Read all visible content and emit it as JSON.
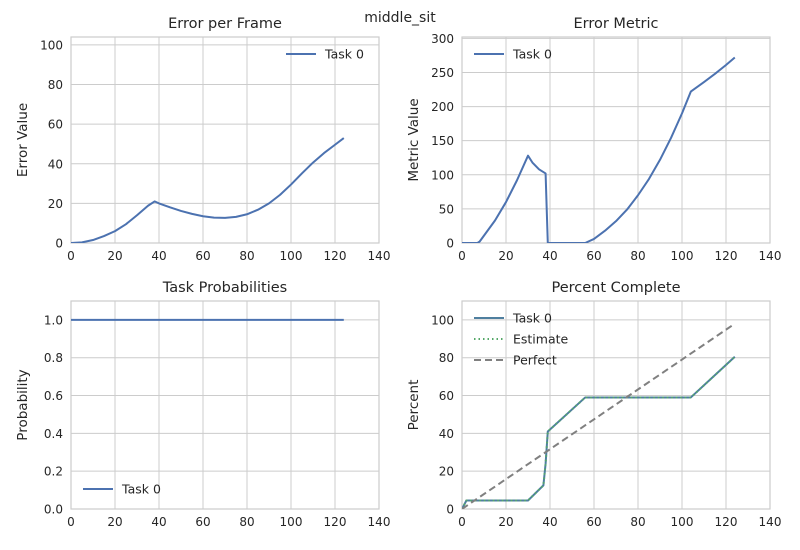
{
  "figure": {
    "suptitle": "middle_sit",
    "colors": {
      "axes_background": "#ffffff",
      "grid": "#cccccc",
      "spine": "#cccccc",
      "text": "#262626",
      "task0_primary": "#4c72b0",
      "task0_percent": "#4f7f9f",
      "estimate": "#55a868",
      "perfect": "#808080"
    }
  },
  "chart_data": [
    {
      "id": "error-per-frame",
      "type": "line",
      "title": "Error per Frame",
      "xlabel": "",
      "ylabel": "Error Value",
      "xlim": [
        0,
        140
      ],
      "ylim": [
        0,
        104
      ],
      "xticks": [
        0,
        20,
        40,
        60,
        80,
        100,
        120,
        140
      ],
      "yticks": [
        0,
        20,
        40,
        60,
        80,
        100
      ],
      "grid": true,
      "legend": "upper-right",
      "series": [
        {
          "name": "Task 0",
          "color": "#4c72b0",
          "dash": "solid",
          "x": [
            0,
            5,
            10,
            15,
            20,
            25,
            30,
            35,
            38,
            40,
            45,
            50,
            55,
            60,
            65,
            70,
            75,
            80,
            85,
            90,
            95,
            100,
            105,
            110,
            115,
            120,
            124
          ],
          "y": [
            0,
            0.3,
            1.5,
            3.5,
            6.0,
            9.5,
            14.0,
            18.8,
            21.0,
            20.0,
            18.0,
            16.2,
            14.7,
            13.5,
            12.8,
            12.7,
            13.2,
            14.5,
            16.8,
            20.0,
            24.3,
            29.5,
            35.2,
            40.6,
            45.4,
            49.6,
            53.0
          ]
        }
      ]
    },
    {
      "id": "error-metric",
      "type": "line",
      "title": "Error Metric",
      "xlabel": "",
      "ylabel": "Metric Value",
      "xlim": [
        0,
        140
      ],
      "ylim": [
        0,
        302
      ],
      "xticks": [
        0,
        20,
        40,
        60,
        80,
        100,
        120,
        140
      ],
      "yticks": [
        0,
        50,
        100,
        150,
        200,
        250,
        300
      ],
      "grid": true,
      "legend": "upper-left",
      "series": [
        {
          "name": "Task 0",
          "color": "#4c72b0",
          "dash": "solid",
          "x": [
            0,
            7,
            8,
            15,
            20,
            25,
            30,
            32,
            35,
            38,
            38.5,
            39,
            45,
            50,
            55,
            56,
            60,
            65,
            70,
            75,
            80,
            85,
            90,
            95,
            100,
            104,
            110,
            115,
            120,
            124
          ],
          "y": [
            0,
            0,
            2,
            33,
            60,
            92,
            128,
            118,
            108,
            102,
            50,
            0,
            0,
            0,
            0,
            0,
            6,
            18,
            32,
            49,
            70,
            94,
            122,
            154,
            190,
            222,
            236,
            248,
            261,
            272
          ]
        }
      ]
    },
    {
      "id": "task-probabilities",
      "type": "line",
      "title": "Task Probabilities",
      "xlabel": "",
      "ylabel": "Probability",
      "xlim": [
        0,
        140
      ],
      "ylim": [
        0,
        1.1
      ],
      "xticks": [
        0,
        20,
        40,
        60,
        80,
        100,
        120,
        140
      ],
      "yticks": [
        0.0,
        0.2,
        0.4,
        0.6,
        0.8,
        1.0
      ],
      "grid": true,
      "legend": "lower-left",
      "series": [
        {
          "name": "Task 0",
          "color": "#4c72b0",
          "dash": "solid",
          "x": [
            0,
            124
          ],
          "y": [
            1.0,
            1.0
          ]
        }
      ]
    },
    {
      "id": "percent-complete",
      "type": "line",
      "title": "Percent Complete",
      "xlabel": "",
      "ylabel": "Percent",
      "xlim": [
        0,
        140
      ],
      "ylim": [
        0,
        110
      ],
      "xticks": [
        0,
        20,
        40,
        60,
        80,
        100,
        120,
        140
      ],
      "yticks": [
        0,
        20,
        40,
        60,
        80,
        100
      ],
      "grid": true,
      "legend": "upper-left",
      "series": [
        {
          "name": "Task 0",
          "color": "#4f7f9f",
          "dash": "solid",
          "x": [
            0,
            2,
            30,
            37,
            38,
            39,
            56,
            104,
            124
          ],
          "y": [
            0,
            4.5,
            4.5,
            12.5,
            24,
            41,
            59,
            59,
            80.5
          ]
        },
        {
          "name": "Estimate",
          "color": "#55a868",
          "dash": "dotted",
          "x": [
            0,
            2,
            30,
            37,
            38,
            39,
            56,
            104,
            124
          ],
          "y": [
            0,
            4.5,
            4.5,
            12.5,
            24,
            41,
            59,
            59,
            80.5
          ]
        },
        {
          "name": "Perfect",
          "color": "#808080",
          "dash": "dashed",
          "x": [
            0,
            124
          ],
          "y": [
            0,
            98
          ]
        }
      ]
    }
  ]
}
